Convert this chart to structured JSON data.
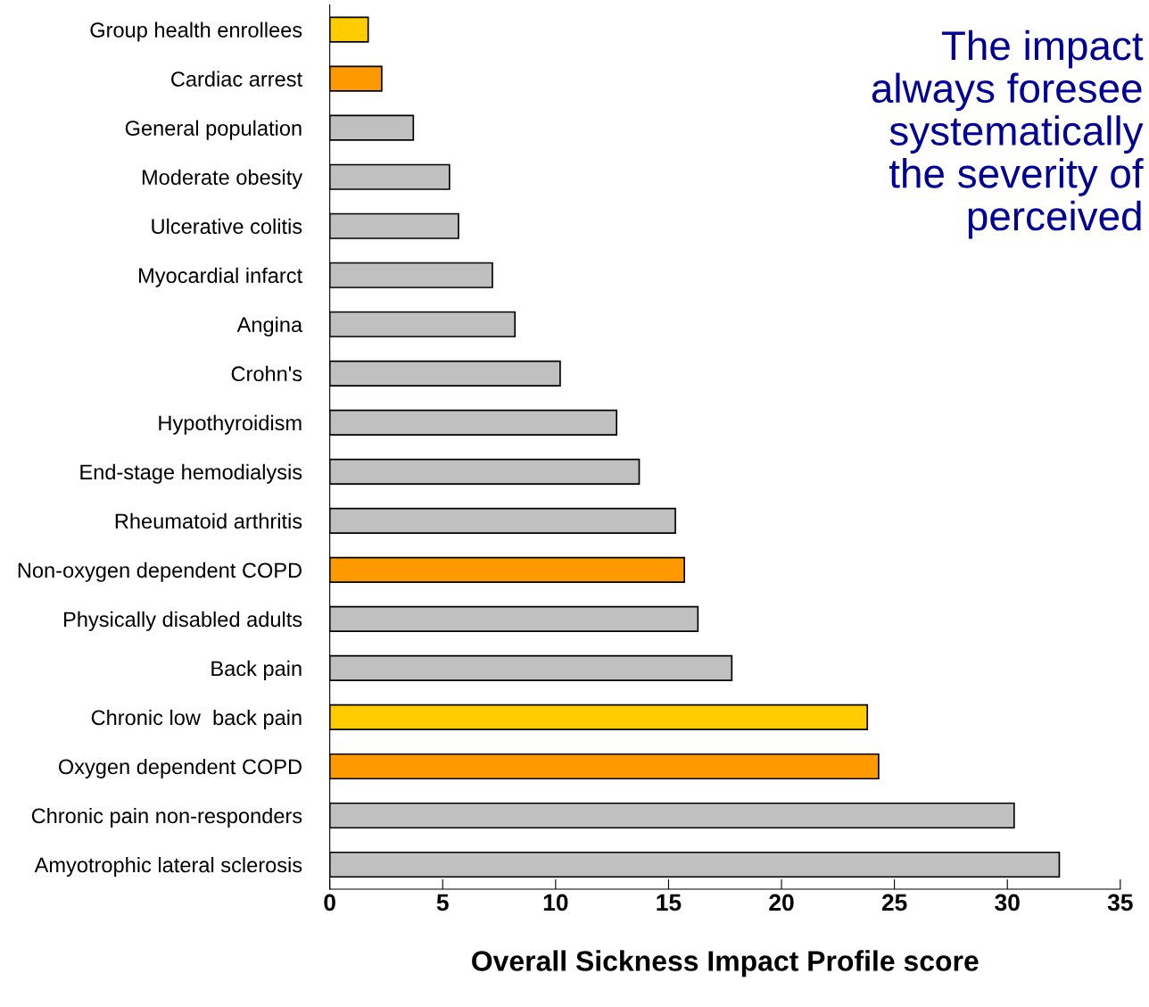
{
  "chart_data": {
    "type": "bar",
    "orientation": "horizontal",
    "title": "The impact\nalways foresee\nsystematically\nthe severity of\nperceived",
    "xlabel": "Overall Sickness Impact Profile score",
    "categories": [
      "Group health enrollees",
      "Cardiac arrest",
      "General population",
      "Moderate obesity",
      "Ulcerative colitis",
      "Myocardial infarct",
      "Angina",
      "Crohn's",
      "Hypothyroidism",
      "End-stage hemodialysis",
      "Rheumatoid arthritis",
      "Non-oxygen dependent COPD",
      "Physically disabled adults",
      "Back pain",
      "Chronic low  back pain",
      "Oxygen dependent COPD",
      "Chronic pain non-responders",
      "Amyotrophic lateral sclerosis"
    ],
    "values": [
      1.7,
      2.3,
      3.7,
      5.3,
      5.7,
      7.2,
      8.2,
      10.2,
      12.7,
      13.7,
      15.3,
      15.7,
      16.3,
      17.8,
      23.8,
      24.3,
      30.3,
      32.3
    ],
    "colors": [
      "#ffcc00",
      "#ff9900",
      "#c0c0c0",
      "#c0c0c0",
      "#c0c0c0",
      "#c0c0c0",
      "#c0c0c0",
      "#c0c0c0",
      "#c0c0c0",
      "#c0c0c0",
      "#c0c0c0",
      "#ff9900",
      "#c0c0c0",
      "#c0c0c0",
      "#ffcc00",
      "#ff9900",
      "#c0c0c0",
      "#c0c0c0"
    ],
    "xlim": [
      0,
      35
    ],
    "xticks": [
      0,
      5,
      10,
      15,
      20,
      25,
      30,
      35
    ],
    "grid": false,
    "legend": false
  }
}
